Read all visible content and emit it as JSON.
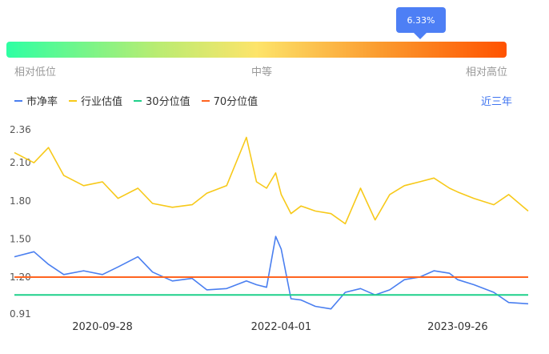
{
  "indicator": {
    "percentile_label": "6.33%",
    "percentile": 0.0633,
    "scale_labels": [
      "相对低位",
      "中等",
      "相对高位"
    ],
    "colors": [
      "#2effa3",
      "#fde46a",
      "#ff5200"
    ]
  },
  "legend": {
    "items": [
      {
        "label": "市净率",
        "color": "#4a7ff0"
      },
      {
        "label": "行业估值",
        "color": "#f7c919"
      },
      {
        "label": "30分位值",
        "color": "#1fd08a"
      },
      {
        "label": "70分位值",
        "color": "#ff6420"
      }
    ],
    "period_button": "近三年"
  },
  "chart_data": {
    "type": "line",
    "x_ticks": [
      "2020-09-28",
      "2022-04-01",
      "2023-09-26"
    ],
    "y_ticks": [
      "0.91",
      "1.20",
      "1.50",
      "1.80",
      "2.10",
      "2.36"
    ],
    "ylim": [
      0.91,
      2.36
    ],
    "x_points": [
      "2020-01-01",
      "2020-03-01",
      "2020-04-15",
      "2020-06-01",
      "2020-08-01",
      "2020-09-28",
      "2020-11-15",
      "2021-01-15",
      "2021-03-01",
      "2021-05-01",
      "2021-07-01",
      "2021-08-15",
      "2021-10-15",
      "2021-12-15",
      "2022-01-15",
      "2022-02-15",
      "2022-03-15",
      "2022-04-01",
      "2022-05-01",
      "2022-06-01",
      "2022-07-15",
      "2022-09-01",
      "2022-10-15",
      "2022-12-01",
      "2023-01-15",
      "2023-03-01",
      "2023-04-15",
      "2023-06-01",
      "2023-07-15",
      "2023-09-01",
      "2023-09-26",
      "2023-11-15",
      "2024-01-15",
      "2024-03-01",
      "2024-04-30"
    ],
    "series": [
      {
        "name": "市净率",
        "color": "#4a7ff0",
        "values": [
          1.36,
          1.4,
          1.3,
          1.22,
          1.25,
          1.22,
          1.28,
          1.36,
          1.24,
          1.17,
          1.19,
          1.1,
          1.11,
          1.17,
          1.14,
          1.12,
          1.52,
          1.42,
          1.03,
          1.02,
          0.97,
          0.95,
          1.08,
          1.11,
          1.06,
          1.1,
          1.18,
          1.2,
          1.25,
          1.23,
          1.18,
          1.14,
          1.08,
          1.0,
          0.99
        ]
      },
      {
        "name": "行业估值",
        "color": "#f7c919",
        "values": [
          2.18,
          2.1,
          2.22,
          2.0,
          1.92,
          1.95,
          1.82,
          1.9,
          1.78,
          1.75,
          1.77,
          1.86,
          1.92,
          2.3,
          1.95,
          1.9,
          2.02,
          1.85,
          1.7,
          1.76,
          1.72,
          1.7,
          1.62,
          1.9,
          1.65,
          1.85,
          1.92,
          1.95,
          1.98,
          1.9,
          1.87,
          1.82,
          1.77,
          1.85,
          1.72
        ]
      },
      {
        "name": "30分位值",
        "color": "#1fd08a",
        "values": [
          1.06,
          1.06
        ]
      },
      {
        "name": "70分位值",
        "color": "#ff6420",
        "values": [
          1.2,
          1.2
        ]
      }
    ],
    "grid": false,
    "legend_position": "top-left"
  }
}
